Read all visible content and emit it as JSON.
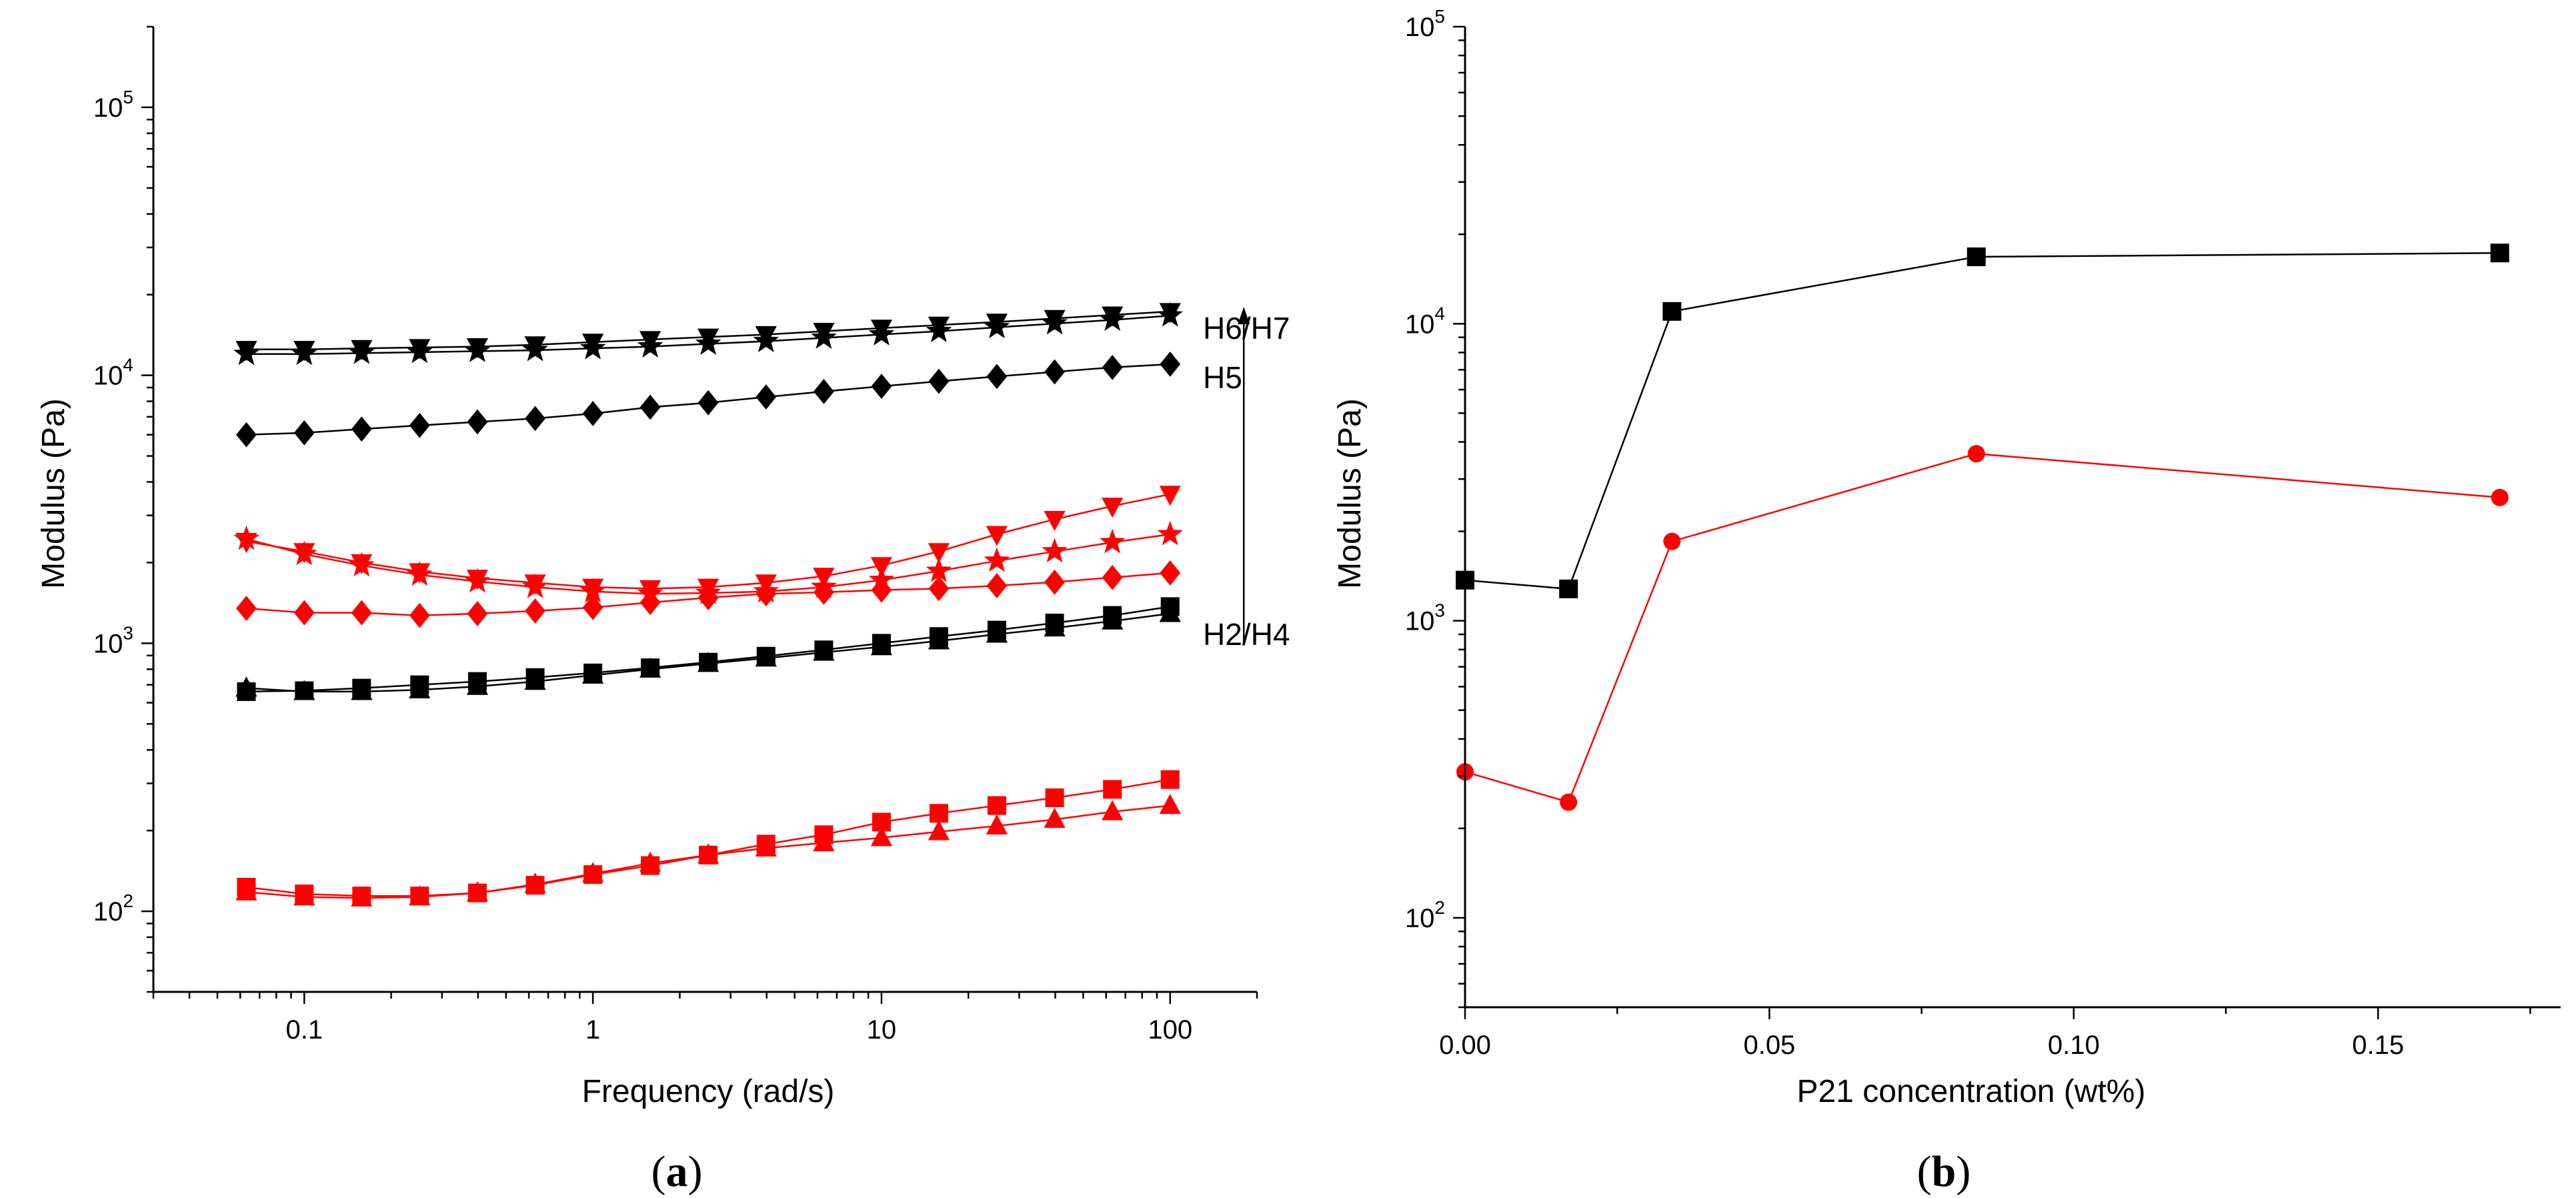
{
  "panels": {
    "a": {
      "open": "(",
      "letter": "a",
      "close": ")"
    },
    "b": {
      "open": "(",
      "letter": "b",
      "close": ")"
    }
  },
  "colors": {
    "black_series": "#000000",
    "red_series": "#ff0000"
  },
  "chart_data": [
    {
      "type": "line",
      "xscale": "log",
      "yscale": "log",
      "xlabel": "Frequency (rad/s)",
      "ylabel": "Modulus (Pa)",
      "xlim": [
        0.03,
        200
      ],
      "ylim": [
        50,
        200000
      ],
      "xticks": [
        {
          "v": 0.1,
          "label": "0.1"
        },
        {
          "v": 1,
          "label": "1"
        },
        {
          "v": 10,
          "label": "10"
        },
        {
          "v": 100,
          "label": "100"
        }
      ],
      "yticks": [
        {
          "v": 100,
          "base": "10",
          "exp": "2"
        },
        {
          "v": 1000,
          "base": "10",
          "exp": "3"
        },
        {
          "v": 10000,
          "base": "10",
          "exp": "4"
        },
        {
          "v": 100000,
          "base": "10",
          "exp": "5"
        }
      ],
      "grid": false,
      "x": [
        0.063,
        0.1,
        0.158,
        0.251,
        0.398,
        0.631,
        1.0,
        1.58,
        2.51,
        3.98,
        6.31,
        10.0,
        15.8,
        25.1,
        39.8,
        63.1,
        100.0
      ],
      "annotations": [
        {
          "text": "H6/H7",
          "x": 130,
          "y": 15000
        },
        {
          "text": "H5",
          "x": 130,
          "y": 9800
        },
        {
          "text": "H2/H4",
          "x": 130,
          "y": 1080
        }
      ],
      "arrow": {
        "x": 180,
        "from": 1000,
        "to": 18000
      },
      "series": [
        {
          "color": "#000000",
          "marker": "triangle-down",
          "values": [
            12500,
            12500,
            12600,
            12700,
            12800,
            13000,
            13300,
            13600,
            13900,
            14200,
            14600,
            15000,
            15400,
            15800,
            16300,
            16800,
            17300
          ]
        },
        {
          "color": "#000000",
          "marker": "star",
          "values": [
            12000,
            12000,
            12100,
            12200,
            12300,
            12400,
            12600,
            12800,
            13100,
            13400,
            13800,
            14200,
            14600,
            15100,
            15600,
            16100,
            16700
          ]
        },
        {
          "color": "#000000",
          "marker": "diamond",
          "values": [
            6000,
            6100,
            6300,
            6500,
            6700,
            6900,
            7200,
            7600,
            7900,
            8300,
            8700,
            9100,
            9500,
            9900,
            10300,
            10700,
            11000
          ]
        },
        {
          "color": "#000000",
          "marker": "square",
          "values": [
            660,
            665,
            680,
            700,
            720,
            745,
            775,
            810,
            850,
            895,
            945,
            1000,
            1060,
            1120,
            1190,
            1270,
            1370
          ]
        },
        {
          "color": "#000000",
          "marker": "triangle-up",
          "values": [
            680,
            660,
            660,
            670,
            690,
            720,
            760,
            800,
            840,
            880,
            925,
            970,
            1020,
            1080,
            1140,
            1210,
            1290
          ]
        },
        {
          "color": "#ff0000",
          "marker": "triangle-down",
          "values": [
            2400,
            2200,
            2000,
            1850,
            1750,
            1680,
            1620,
            1600,
            1620,
            1680,
            1780,
            1950,
            2200,
            2550,
            2900,
            3250,
            3600
          ]
        },
        {
          "color": "#ff0000",
          "marker": "star",
          "values": [
            2450,
            2150,
            1950,
            1800,
            1700,
            1620,
            1560,
            1530,
            1540,
            1560,
            1620,
            1720,
            1860,
            2030,
            2200,
            2380,
            2550
          ]
        },
        {
          "color": "#ff0000",
          "marker": "diamond",
          "values": [
            1350,
            1300,
            1300,
            1270,
            1290,
            1320,
            1360,
            1420,
            1480,
            1530,
            1550,
            1580,
            1600,
            1640,
            1690,
            1760,
            1830
          ]
        },
        {
          "color": "#ff0000",
          "marker": "square",
          "values": [
            123,
            116,
            114,
            114,
            117,
            125,
            137,
            148,
            162,
            178,
            193,
            215,
            232,
            248,
            265,
            285,
            310
          ]
        },
        {
          "color": "#ff0000",
          "marker": "triangle-up",
          "values": [
            118,
            113,
            112,
            113,
            117,
            126,
            138,
            151,
            162,
            172,
            180,
            188,
            198,
            208,
            220,
            235,
            248
          ]
        }
      ]
    },
    {
      "type": "line",
      "yscale": "log",
      "xlabel": "P21 concentration (wt%)",
      "ylabel": "Modulus (Pa)",
      "xlim": [
        0.0,
        0.18
      ],
      "ylim": [
        50,
        100000
      ],
      "xticks": [
        {
          "v": 0.0,
          "label": "0.00"
        },
        {
          "v": 0.05,
          "label": "0.05"
        },
        {
          "v": 0.1,
          "label": "0.10"
        },
        {
          "v": 0.15,
          "label": "0.15"
        }
      ],
      "yticks": [
        {
          "v": 100,
          "base": "10",
          "exp": "2"
        },
        {
          "v": 1000,
          "base": "10",
          "exp": "3"
        },
        {
          "v": 10000,
          "base": "10",
          "exp": "4"
        },
        {
          "v": 100000,
          "base": "10",
          "exp": "5"
        }
      ],
      "grid": false,
      "x": [
        0.0,
        0.017,
        0.034,
        0.084,
        0.17
      ],
      "series": [
        {
          "color": "#000000",
          "marker": "square",
          "values": [
            1370,
            1280,
            11000,
            16800,
            17300
          ]
        },
        {
          "color": "#ff0000",
          "marker": "circle",
          "values": [
            310,
            245,
            1850,
            3650,
            2600
          ]
        }
      ]
    }
  ]
}
